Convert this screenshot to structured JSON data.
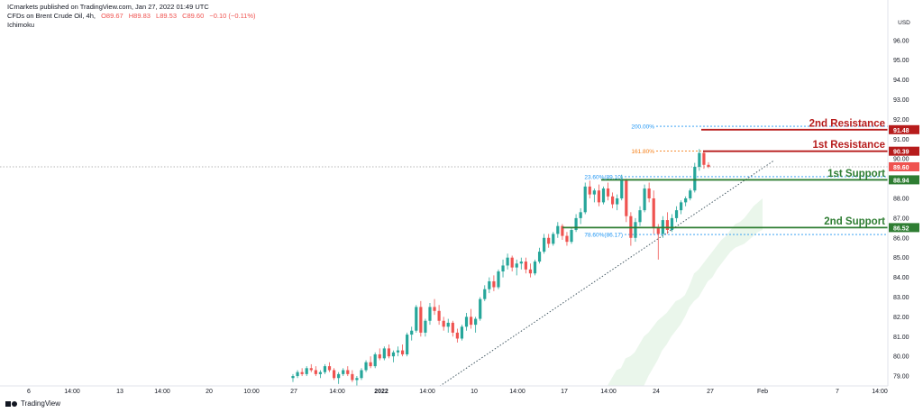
{
  "header": {
    "publisher": "ICmarkets published on TradingView.com, Jan 27, 2022 01:49 UTC",
    "symbol": "CFDs on Brent Crude Oil, 4h,",
    "ohlc": {
      "open": "O89.67",
      "high": "H89.83",
      "low": "L89.53",
      "close": "C89.60",
      "change": "−0.10 (−0.11%)"
    },
    "indicator": "Ichimoku"
  },
  "footer": {
    "brand": "TradingView"
  },
  "icons": {
    "logo": "tradingview-logo-icon"
  },
  "colors": {
    "resistance": "#b71c1c",
    "support": "#2e7d32",
    "up_candle": "#26a69a",
    "down_candle": "#ef5350",
    "cloud": "#e8f5e9",
    "fib_200": "#2196f3",
    "fib_161": "#f57f17",
    "price_badge": "#ef5350"
  },
  "chart_data": {
    "type": "candlestick",
    "y_axis": {
      "label": "USD",
      "min": 78.5,
      "max": 97.5,
      "ticks": [
        "79.00",
        "80.00",
        "81.00",
        "82.00",
        "83.00",
        "84.00",
        "85.00",
        "86.00",
        "87.00",
        "88.00",
        "89.00",
        "90.00",
        "91.00",
        "92.00",
        "93.00",
        "94.00",
        "95.00",
        "96.00"
      ]
    },
    "x_axis": {
      "ticks": [
        "6",
        "14:00",
        "13",
        "14:00",
        "20",
        "10:00",
        "27",
        "14:00",
        "2022",
        "14:00",
        "10",
        "14:00",
        "17",
        "14:00",
        "24",
        "27",
        "Feb",
        "7",
        "14:00"
      ]
    },
    "levels": [
      {
        "name": "2nd Resistance",
        "value": 91.48,
        "badge": "91.48",
        "kind": "resistance"
      },
      {
        "name": "1st Resistance",
        "value": 90.39,
        "badge": "90.39",
        "kind": "resistance"
      },
      {
        "name": "1st Support",
        "value": 88.94,
        "badge": "88.94",
        "kind": "support"
      },
      {
        "name": "2nd Support",
        "value": 86.52,
        "badge": "86.52",
        "kind": "support"
      }
    ],
    "current_price": {
      "value": 89.6,
      "badge": "89.60"
    },
    "fib_levels": [
      {
        "label": "200.00%",
        "value": 91.65
      },
      {
        "label": "161.80%",
        "value": 90.4
      },
      {
        "label": "23.60%(89.10)",
        "value": 89.1
      },
      {
        "label": "78.60%(86.17)",
        "value": 86.17
      }
    ],
    "candles": [
      [
        78.9,
        79.1,
        78.7,
        79.0
      ],
      [
        79.0,
        79.3,
        78.9,
        79.2
      ],
      [
        79.2,
        79.4,
        79.0,
        79.1
      ],
      [
        79.1,
        79.5,
        79.0,
        79.4
      ],
      [
        79.4,
        79.6,
        79.2,
        79.3
      ],
      [
        79.3,
        79.5,
        79.0,
        79.1
      ],
      [
        79.1,
        79.3,
        78.9,
        79.2
      ],
      [
        79.2,
        79.6,
        79.1,
        79.5
      ],
      [
        79.5,
        79.7,
        79.2,
        79.3
      ],
      [
        79.3,
        79.4,
        78.8,
        78.9
      ],
      [
        78.9,
        79.2,
        78.6,
        79.1
      ],
      [
        79.1,
        79.4,
        79.0,
        79.3
      ],
      [
        79.3,
        79.5,
        79.0,
        79.1
      ],
      [
        79.1,
        79.3,
        78.7,
        78.8
      ],
      [
        78.8,
        79.0,
        78.5,
        78.9
      ],
      [
        78.9,
        79.4,
        78.8,
        79.3
      ],
      [
        79.3,
        79.8,
        79.2,
        79.7
      ],
      [
        79.7,
        80.0,
        79.4,
        79.5
      ],
      [
        79.5,
        80.2,
        79.4,
        80.1
      ],
      [
        80.1,
        80.4,
        79.8,
        79.9
      ],
      [
        79.9,
        80.5,
        79.8,
        80.4
      ],
      [
        80.4,
        80.6,
        79.9,
        80.0
      ],
      [
        80.0,
        80.3,
        79.7,
        80.2
      ],
      [
        80.2,
        80.5,
        80.0,
        80.3
      ],
      [
        80.3,
        80.6,
        80.0,
        80.1
      ],
      [
        80.1,
        81.2,
        80.0,
        81.1
      ],
      [
        81.1,
        81.5,
        80.8,
        81.3
      ],
      [
        81.3,
        82.6,
        81.2,
        82.5
      ],
      [
        82.5,
        82.8,
        81.0,
        81.2
      ],
      [
        81.2,
        81.9,
        81.0,
        81.8
      ],
      [
        81.8,
        82.7,
        81.6,
        82.5
      ],
      [
        82.5,
        82.9,
        82.1,
        82.3
      ],
      [
        82.3,
        82.6,
        81.6,
        81.8
      ],
      [
        81.8,
        82.0,
        81.3,
        81.5
      ],
      [
        81.5,
        81.9,
        81.2,
        81.7
      ],
      [
        81.7,
        81.8,
        81.0,
        81.2
      ],
      [
        81.2,
        81.4,
        80.7,
        80.9
      ],
      [
        80.9,
        81.6,
        80.8,
        81.5
      ],
      [
        81.5,
        82.2,
        81.3,
        82.0
      ],
      [
        82.0,
        82.4,
        81.4,
        81.6
      ],
      [
        81.6,
        82.0,
        81.2,
        81.9
      ],
      [
        81.9,
        83.0,
        81.8,
        82.9
      ],
      [
        82.9,
        83.6,
        82.8,
        83.4
      ],
      [
        83.4,
        84.0,
        83.2,
        83.8
      ],
      [
        83.8,
        84.1,
        83.3,
        83.5
      ],
      [
        83.5,
        84.4,
        83.4,
        84.3
      ],
      [
        84.3,
        84.9,
        84.0,
        84.6
      ],
      [
        84.6,
        85.2,
        84.4,
        85.0
      ],
      [
        85.0,
        85.1,
        84.3,
        84.5
      ],
      [
        84.5,
        84.9,
        84.1,
        84.7
      ],
      [
        84.7,
        85.0,
        84.4,
        84.8
      ],
      [
        84.8,
        85.0,
        84.2,
        84.4
      ],
      [
        84.4,
        84.7,
        84.0,
        84.2
      ],
      [
        84.2,
        84.9,
        84.1,
        84.8
      ],
      [
        84.8,
        85.5,
        84.7,
        85.3
      ],
      [
        85.3,
        86.2,
        85.2,
        86.0
      ],
      [
        86.0,
        86.2,
        85.5,
        85.7
      ],
      [
        85.7,
        86.3,
        85.6,
        86.2
      ],
      [
        86.2,
        86.8,
        86.0,
        86.6
      ],
      [
        86.6,
        86.7,
        85.9,
        86.1
      ],
      [
        86.1,
        86.3,
        85.6,
        85.8
      ],
      [
        85.8,
        86.5,
        85.7,
        86.4
      ],
      [
        86.4,
        87.2,
        86.3,
        87.0
      ],
      [
        87.0,
        87.5,
        86.7,
        87.3
      ],
      [
        87.3,
        88.8,
        87.2,
        88.6
      ],
      [
        88.6,
        88.9,
        88.0,
        88.2
      ],
      [
        88.2,
        88.5,
        87.8,
        88.4
      ],
      [
        88.4,
        88.7,
        87.6,
        87.8
      ],
      [
        87.8,
        88.6,
        87.7,
        88.5
      ],
      [
        88.5,
        88.8,
        87.9,
        88.1
      ],
      [
        88.1,
        88.3,
        87.5,
        87.7
      ],
      [
        87.7,
        88.2,
        87.4,
        88.0
      ],
      [
        88.0,
        89.2,
        87.9,
        88.9
      ],
      [
        88.9,
        89.0,
        86.8,
        87.1
      ],
      [
        87.1,
        87.3,
        85.6,
        86.0
      ],
      [
        86.0,
        87.0,
        85.8,
        86.8
      ],
      [
        86.8,
        87.6,
        86.6,
        87.4
      ],
      [
        87.4,
        88.7,
        87.3,
        88.5
      ],
      [
        88.5,
        88.8,
        87.8,
        88.0
      ],
      [
        88.0,
        88.4,
        86.2,
        86.5
      ],
      [
        86.5,
        86.7,
        84.9,
        86.2
      ],
      [
        86.2,
        87.1,
        86.0,
        86.9
      ],
      [
        86.9,
        87.3,
        86.2,
        86.4
      ],
      [
        86.4,
        87.2,
        86.3,
        87.0
      ],
      [
        87.0,
        87.6,
        86.8,
        87.4
      ],
      [
        87.4,
        87.9,
        87.2,
        87.8
      ],
      [
        87.8,
        88.1,
        87.6,
        88.0
      ],
      [
        88.0,
        88.5,
        87.9,
        88.4
      ],
      [
        88.4,
        89.8,
        88.3,
        89.6
      ],
      [
        89.6,
        90.5,
        89.4,
        90.3
      ],
      [
        90.3,
        90.4,
        89.5,
        89.7
      ],
      [
        89.7,
        89.83,
        89.53,
        89.6
      ]
    ],
    "cloud": [
      [
        78.5,
        78.5
      ],
      [
        78.5,
        78.5
      ],
      [
        78.5,
        78.5
      ],
      [
        78.5,
        78.9
      ],
      [
        78.5,
        79.3
      ],
      [
        78.5,
        79.4
      ],
      [
        78.5,
        79.9
      ],
      [
        78.5,
        80.0
      ],
      [
        78.5,
        80.2
      ],
      [
        78.5,
        80.6
      ],
      [
        78.5,
        81.0
      ],
      [
        79.0,
        81.2
      ],
      [
        79.4,
        81.5
      ],
      [
        79.8,
        81.8
      ],
      [
        80.3,
        82.0
      ],
      [
        80.6,
        82.2
      ],
      [
        81.0,
        82.5
      ],
      [
        81.3,
        82.8
      ],
      [
        81.6,
        82.9
      ],
      [
        82.0,
        83.1
      ],
      [
        82.5,
        83.6
      ],
      [
        82.8,
        84.2
      ],
      [
        83.0,
        84.4
      ],
      [
        83.4,
        84.7
      ],
      [
        83.8,
        85.0
      ],
      [
        84.0,
        85.3
      ],
      [
        84.4,
        85.6
      ],
      [
        84.7,
        85.9
      ],
      [
        85.0,
        86.1
      ],
      [
        85.3,
        86.4
      ],
      [
        85.5,
        86.7
      ],
      [
        85.6,
        86.8
      ],
      [
        85.7,
        87.0
      ],
      [
        85.9,
        87.3
      ],
      [
        86.1,
        87.6
      ],
      [
        86.3,
        87.8
      ],
      [
        86.4,
        88.0
      ]
    ],
    "trendline": {
      "start": [
        78.4
      ],
      "end": [
        89.9
      ]
    }
  }
}
